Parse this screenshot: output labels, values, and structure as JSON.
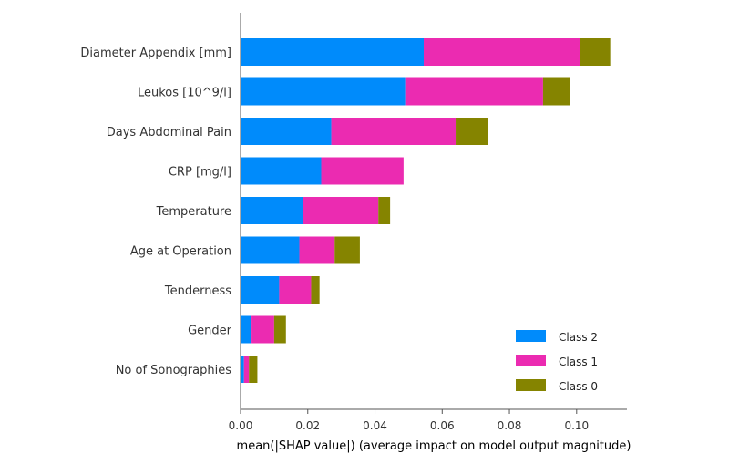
{
  "chart_data": {
    "type": "bar",
    "orientation": "horizontal",
    "stacked": true,
    "categories": [
      "Diameter Appendix [mm]",
      "Leukos [10^9/l]",
      "Days Abdominal Pain",
      "CRP [mg/l]",
      "Temperature",
      "Age at Operation",
      "Tenderness",
      "Gender",
      "No of Sonographies"
    ],
    "series": [
      {
        "name": "Class 2",
        "color": "#008bfb",
        "values": [
          0.0545,
          0.049,
          0.027,
          0.024,
          0.0185,
          0.0175,
          0.0115,
          0.003,
          0.001
        ]
      },
      {
        "name": "Class 1",
        "color": "#eb2bb1",
        "values": [
          0.0465,
          0.041,
          0.037,
          0.0245,
          0.0225,
          0.0105,
          0.0095,
          0.007,
          0.0015
        ]
      },
      {
        "name": "Class 0",
        "color": "#858400",
        "values": [
          0.009,
          0.008,
          0.0095,
          0.0,
          0.0035,
          0.0075,
          0.0025,
          0.0035,
          0.0025
        ]
      }
    ],
    "legend_order": [
      "Class 2",
      "Class 1",
      "Class 0"
    ],
    "legend_position": "lower-right",
    "xlim": [
      0,
      0.115
    ],
    "xticks": [
      "0.00",
      "0.02",
      "0.04",
      "0.06",
      "0.08",
      "0.10"
    ],
    "xtick_values": [
      0,
      0.02,
      0.04,
      0.06,
      0.08,
      0.1
    ],
    "xlabel": "mean(|SHAP value|) (average impact on model output magnitude)",
    "ylabel": "",
    "title": "",
    "grid": false
  }
}
